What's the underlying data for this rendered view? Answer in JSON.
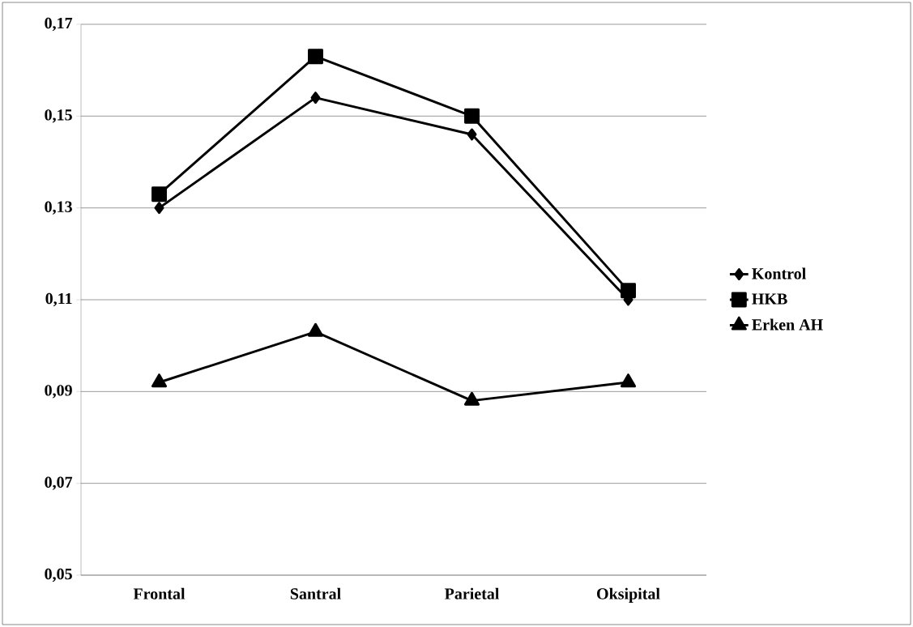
{
  "chart_data": {
    "type": "line",
    "categories": [
      "Frontal",
      "Santral",
      "Parietal",
      "Oksipital"
    ],
    "series": [
      {
        "name": "Kontrol",
        "color": "#000000",
        "marker": "diamond",
        "values": [
          0.13,
          0.154,
          0.146,
          0.11
        ]
      },
      {
        "name": "HKB",
        "color": "#000000",
        "marker": "square",
        "values": [
          0.133,
          0.163,
          0.15,
          0.112
        ]
      },
      {
        "name": "Erken AH",
        "color": "#000000",
        "marker": "triangle",
        "values": [
          0.092,
          0.103,
          0.088,
          0.092
        ]
      }
    ],
    "ylim": [
      0.05,
      0.17
    ],
    "yticks": [
      {
        "value": 0.05,
        "label": "0,05"
      },
      {
        "value": 0.07,
        "label": "0,07"
      },
      {
        "value": 0.09,
        "label": "0,09"
      },
      {
        "value": 0.11,
        "label": "0,11"
      },
      {
        "value": 0.13,
        "label": "0,13"
      },
      {
        "value": 0.15,
        "label": "0,15"
      },
      {
        "value": 0.17,
        "label": "0,17"
      }
    ],
    "grid": "y",
    "legend": "right",
    "line_style": "solid"
  }
}
